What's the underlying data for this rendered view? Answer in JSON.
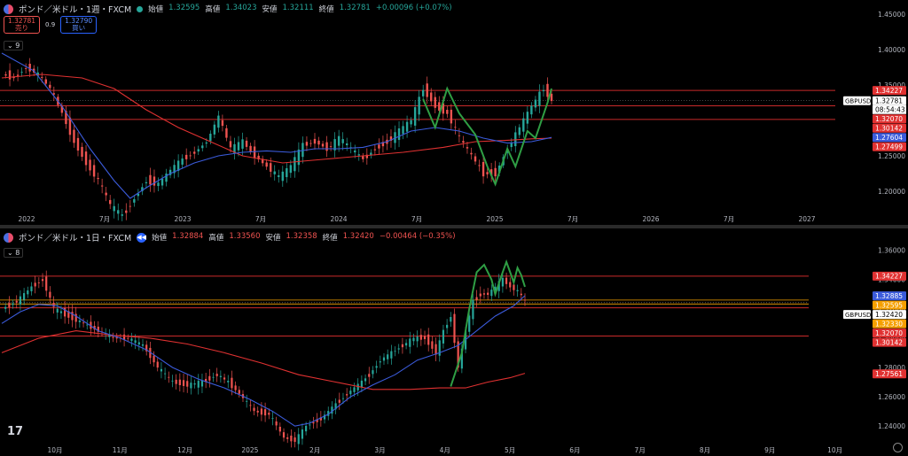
{
  "top": {
    "title": "ポンド／米ドル・1週・FXCM",
    "ohlc": [
      {
        "k": "始値",
        "v": "1.32595"
      },
      {
        "k": "高値",
        "v": "1.34023"
      },
      {
        "k": "安値",
        "v": "1.32111"
      },
      {
        "k": "終値",
        "v": "1.32781"
      },
      {
        "k": "",
        "v": "+0.00096 (+0.07%)"
      }
    ],
    "sell_price": "1.32781",
    "sell_label": "売り",
    "spread": "0.9",
    "buy_price": "1.32790",
    "buy_label": "買い",
    "collapse_label": "9",
    "symbol_tag": "GBPUSD",
    "countdown": "08:54:43"
  },
  "bottom": {
    "title": "ポンド／米ドル・1日・FXCM",
    "ohlc": [
      {
        "k": "始値",
        "v": "1.32884"
      },
      {
        "k": "高値",
        "v": "1.33560"
      },
      {
        "k": "安値",
        "v": "1.32358"
      },
      {
        "k": "終値",
        "v": "1.32420"
      },
      {
        "k": "",
        "v": "−0.00464 (−0.35%)"
      }
    ],
    "collapse_label": "8",
    "symbol_tag": "GBPUSD"
  },
  "logo_text": "17",
  "colors": {
    "up": "#26a69a",
    "down": "#ef5350",
    "ma_fast": "#3b5bdb",
    "ma_slow": "#e03131",
    "pattern": "#2f9e44",
    "hline": "#c92a2a"
  },
  "chart_data": [
    {
      "type": "line",
      "x_ticks": [
        "2022",
        "7月",
        "2023",
        "7月",
        "2024",
        "7月",
        "2025",
        "7月",
        "2026",
        "7月",
        "2027"
      ],
      "y_ticks": [
        "1.45000",
        "1.40000",
        "1.35000",
        "1.30000",
        "1.25000",
        "1.20000"
      ],
      "ylim": [
        1.17,
        1.46
      ],
      "price_tags": [
        {
          "value": 1.34227,
          "label": "1.34227",
          "color": "#e03131"
        },
        {
          "value": 1.32781,
          "label": "1.32781",
          "color": "#ffffff"
        },
        {
          "value": 1.3207,
          "label": "1.32070",
          "color": "#e03131"
        },
        {
          "value": 1.30142,
          "label": "1.30142",
          "color": "#e03131"
        },
        {
          "value": 1.27604,
          "label": "1.27604",
          "color": "#3b5bdb"
        },
        {
          "value": 1.27499,
          "label": "1.27499",
          "color": "#e03131"
        }
      ],
      "hlines": [
        1.34227,
        1.3207,
        1.30142
      ],
      "close_line": 1.32781,
      "price": [
        [
          0,
          1.365
        ],
        [
          3,
          1.36
        ],
        [
          6,
          1.375
        ],
        [
          9,
          1.365
        ],
        [
          12,
          1.345
        ],
        [
          15,
          1.31
        ],
        [
          18,
          1.27
        ],
        [
          21,
          1.24
        ],
        [
          24,
          1.215
        ],
        [
          27,
          1.18
        ],
        [
          30,
          1.165
        ],
        [
          33,
          1.19
        ],
        [
          36,
          1.215
        ],
        [
          39,
          1.21
        ],
        [
          42,
          1.23
        ],
        [
          45,
          1.245
        ],
        [
          48,
          1.255
        ],
        [
          51,
          1.27
        ],
        [
          54,
          1.305
        ],
        [
          57,
          1.26
        ],
        [
          60,
          1.27
        ],
        [
          63,
          1.25
        ],
        [
          66,
          1.235
        ],
        [
          69,
          1.22
        ],
        [
          72,
          1.235
        ],
        [
          75,
          1.265
        ],
        [
          78,
          1.27
        ],
        [
          81,
          1.26
        ],
        [
          84,
          1.275
        ],
        [
          87,
          1.26
        ],
        [
          90,
          1.245
        ],
        [
          93,
          1.26
        ],
        [
          96,
          1.27
        ],
        [
          99,
          1.285
        ],
        [
          102,
          1.3
        ],
        [
          105,
          1.345
        ],
        [
          108,
          1.32
        ],
        [
          111,
          1.31
        ],
        [
          114,
          1.275
        ],
        [
          117,
          1.25
        ],
        [
          120,
          1.225
        ],
        [
          123,
          1.225
        ],
        [
          126,
          1.26
        ],
        [
          129,
          1.29
        ],
        [
          132,
          1.32
        ],
        [
          135,
          1.345
        ],
        [
          137,
          1.328
        ]
      ],
      "ma_fast": [
        [
          0,
          1.395
        ],
        [
          8,
          1.37
        ],
        [
          15,
          1.32
        ],
        [
          22,
          1.26
        ],
        [
          28,
          1.215
        ],
        [
          32,
          1.19
        ],
        [
          36,
          1.205
        ],
        [
          42,
          1.225
        ],
        [
          48,
          1.24
        ],
        [
          54,
          1.25
        ],
        [
          60,
          1.255
        ],
        [
          66,
          1.257
        ],
        [
          72,
          1.255
        ],
        [
          78,
          1.26
        ],
        [
          84,
          1.26
        ],
        [
          90,
          1.262
        ],
        [
          96,
          1.27
        ],
        [
          102,
          1.285
        ],
        [
          108,
          1.29
        ],
        [
          114,
          1.285
        ],
        [
          120,
          1.275
        ],
        [
          126,
          1.268
        ],
        [
          132,
          1.27
        ],
        [
          137,
          1.276
        ]
      ],
      "ma_slow": [
        [
          0,
          1.36
        ],
        [
          10,
          1.365
        ],
        [
          20,
          1.36
        ],
        [
          28,
          1.345
        ],
        [
          36,
          1.315
        ],
        [
          44,
          1.29
        ],
        [
          52,
          1.27
        ],
        [
          60,
          1.25
        ],
        [
          70,
          1.24
        ],
        [
          80,
          1.245
        ],
        [
          90,
          1.25
        ],
        [
          100,
          1.255
        ],
        [
          110,
          1.262
        ],
        [
          118,
          1.27
        ],
        [
          126,
          1.272
        ],
        [
          132,
          1.274
        ],
        [
          137,
          1.275
        ]
      ],
      "pattern": [
        [
          105,
          1.33
        ],
        [
          108,
          1.29
        ],
        [
          111,
          1.345
        ],
        [
          114,
          1.31
        ],
        [
          118,
          1.28
        ],
        [
          121,
          1.235
        ],
        [
          123,
          1.21
        ],
        [
          126,
          1.26
        ],
        [
          128,
          1.235
        ],
        [
          131,
          1.285
        ],
        [
          133,
          1.275
        ],
        [
          136,
          1.325
        ],
        [
          137,
          1.345
        ]
      ]
    },
    {
      "type": "line",
      "x_ticks": [
        "10月",
        "11月",
        "12月",
        "2025",
        "2月",
        "3月",
        "4月",
        "5月",
        "6月",
        "7月",
        "8月",
        "9月",
        "10月"
      ],
      "y_ticks": [
        "1.36000",
        "1.34000",
        "1.32000",
        "1.30000",
        "1.28000",
        "1.26000",
        "1.24000"
      ],
      "ylim": [
        1.225,
        1.37
      ],
      "price_tags": [
        {
          "value": 1.34227,
          "label": "1.34227",
          "color": "#e03131"
        },
        {
          "value": 1.32885,
          "label": "1.32885",
          "color": "#3b5bdb"
        },
        {
          "value": 1.32595,
          "label": "1.32595",
          "color": "#f59f00"
        },
        {
          "value": 1.3242,
          "label": "1.32420",
          "color": "#ffffff"
        },
        {
          "value": 1.3233,
          "label": "1.32330",
          "color": "#f59f00"
        },
        {
          "value": 1.3207,
          "label": "1.32070",
          "color": "#e03131"
        },
        {
          "value": 1.30142,
          "label": "1.30142",
          "color": "#e03131"
        },
        {
          "value": 1.27561,
          "label": "1.27561",
          "color": "#e03131"
        }
      ],
      "hlines": [
        1.34227,
        1.3207,
        1.30142
      ],
      "orange_lines": [
        1.32595,
        1.3233
      ],
      "close_line": 1.3242,
      "price": [
        [
          0,
          1.32
        ],
        [
          8,
          1.325
        ],
        [
          16,
          1.335
        ],
        [
          22,
          1.34
        ],
        [
          28,
          1.32
        ],
        [
          36,
          1.315
        ],
        [
          44,
          1.31
        ],
        [
          52,
          1.305
        ],
        [
          60,
          1.3
        ],
        [
          68,
          1.3
        ],
        [
          76,
          1.295
        ],
        [
          84,
          1.28
        ],
        [
          92,
          1.27
        ],
        [
          100,
          1.268
        ],
        [
          108,
          1.27
        ],
        [
          116,
          1.275
        ],
        [
          122,
          1.27
        ],
        [
          128,
          1.262
        ],
        [
          136,
          1.25
        ],
        [
          144,
          1.248
        ],
        [
          152,
          1.232
        ],
        [
          158,
          1.23
        ],
        [
          164,
          1.24
        ],
        [
          172,
          1.245
        ],
        [
          180,
          1.255
        ],
        [
          186,
          1.262
        ],
        [
          192,
          1.268
        ],
        [
          198,
          1.275
        ],
        [
          204,
          1.285
        ],
        [
          210,
          1.29
        ],
        [
          216,
          1.295
        ],
        [
          222,
          1.3
        ],
        [
          228,
          1.3
        ],
        [
          234,
          1.29
        ],
        [
          238,
          1.305
        ],
        [
          242,
          1.315
        ],
        [
          246,
          1.28
        ],
        [
          250,
          1.305
        ],
        [
          254,
          1.325
        ],
        [
          258,
          1.33
        ],
        [
          262,
          1.33
        ],
        [
          266,
          1.335
        ],
        [
          270,
          1.34
        ],
        [
          274,
          1.335
        ],
        [
          278,
          1.332
        ],
        [
          282,
          1.325
        ]
      ],
      "ma_fast": [
        [
          0,
          1.31
        ],
        [
          10,
          1.318
        ],
        [
          20,
          1.323
        ],
        [
          30,
          1.322
        ],
        [
          40,
          1.315
        ],
        [
          52,
          1.305
        ],
        [
          64,
          1.3
        ],
        [
          78,
          1.292
        ],
        [
          92,
          1.28
        ],
        [
          106,
          1.272
        ],
        [
          120,
          1.266
        ],
        [
          134,
          1.258
        ],
        [
          146,
          1.25
        ],
        [
          158,
          1.24
        ],
        [
          166,
          1.242
        ],
        [
          176,
          1.248
        ],
        [
          188,
          1.26
        ],
        [
          200,
          1.268
        ],
        [
          212,
          1.275
        ],
        [
          224,
          1.285
        ],
        [
          236,
          1.29
        ],
        [
          246,
          1.295
        ],
        [
          256,
          1.305
        ],
        [
          266,
          1.315
        ],
        [
          276,
          1.322
        ],
        [
          282,
          1.329
        ]
      ],
      "ma_slow": [
        [
          0,
          1.29
        ],
        [
          20,
          1.3
        ],
        [
          40,
          1.305
        ],
        [
          60,
          1.302
        ],
        [
          80,
          1.3
        ],
        [
          100,
          1.296
        ],
        [
          120,
          1.29
        ],
        [
          140,
          1.283
        ],
        [
          160,
          1.275
        ],
        [
          180,
          1.27
        ],
        [
          200,
          1.265
        ],
        [
          220,
          1.265
        ],
        [
          236,
          1.266
        ],
        [
          250,
          1.266
        ],
        [
          262,
          1.27
        ],
        [
          274,
          1.273
        ],
        [
          282,
          1.276
        ]
      ],
      "pattern": [
        [
          242,
          1.267
        ],
        [
          248,
          1.29
        ],
        [
          252,
          1.32
        ],
        [
          256,
          1.345
        ],
        [
          260,
          1.35
        ],
        [
          264,
          1.34
        ],
        [
          266,
          1.33
        ],
        [
          270,
          1.345
        ],
        [
          272,
          1.352
        ],
        [
          274,
          1.345
        ],
        [
          276,
          1.338
        ],
        [
          278,
          1.348
        ],
        [
          280,
          1.343
        ],
        [
          282,
          1.335
        ]
      ]
    }
  ]
}
